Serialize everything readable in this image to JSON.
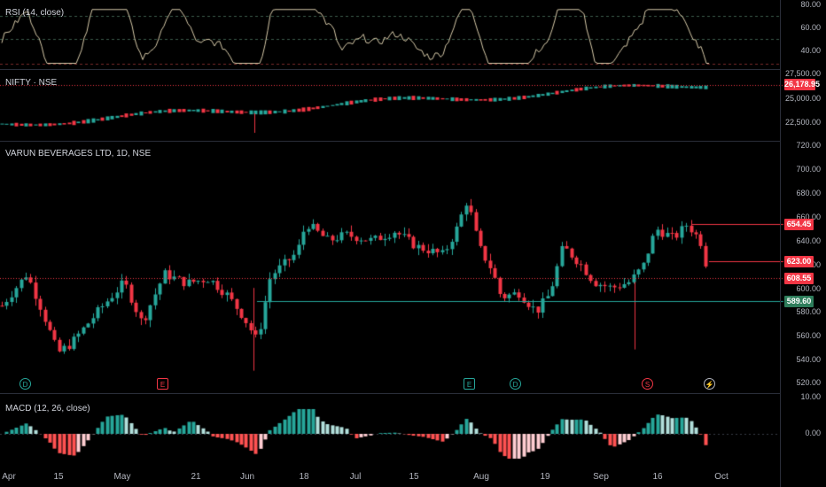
{
  "rsi": {
    "title": "RSI (14, close)",
    "axis": [
      "80.00",
      "60.00",
      "40.00"
    ]
  },
  "nifty": {
    "title": "NIFTY · NSE",
    "axis": [
      "27,500.00",
      "25,000.00",
      "22,500.00"
    ],
    "last_price": "26,178.95"
  },
  "main": {
    "title": "VARUN BEVERAGES LTD, 1D, NSE",
    "axis": [
      "720.00",
      "700.00",
      "680.00",
      "660.00",
      "640.00",
      "620.00",
      "600.00",
      "580.00",
      "560.00",
      "540.00",
      "520.00"
    ],
    "tags": [
      {
        "value": "654.45",
        "color": "#f23645"
      },
      {
        "value": "623.00",
        "color": "#f23645"
      },
      {
        "value": "608.55",
        "color": "#f23645"
      },
      {
        "value": "589.60",
        "color": "#2e7d5b"
      }
    ]
  },
  "macd": {
    "title": "MACD (12, 26, close)",
    "axis": [
      "10.00",
      "0.00"
    ]
  },
  "events": [
    {
      "label": "D",
      "color": "#26a69a"
    },
    {
      "label": "E",
      "color": "#f23645"
    },
    {
      "label": "E",
      "color": "#26a69a"
    },
    {
      "label": "D",
      "color": "#26a69a"
    },
    {
      "label": "S",
      "color": "#f23645"
    },
    {
      "label": "⚡",
      "color": "#b2b5be"
    }
  ],
  "dates": [
    "Apr",
    "15",
    "May",
    "21",
    "Jun",
    "18",
    "Jul",
    "15",
    "Aug",
    "19",
    "Sep",
    "16",
    "Oct"
  ],
  "colors": {
    "up": "#26a69a",
    "down": "#f23645",
    "rsi_line": "#d6c9a8",
    "macd_up_strong": "#26a69a",
    "macd_up_weak": "#b2dfdb",
    "macd_down_strong": "#ff5252",
    "macd_down_weak": "#ffcdd2"
  }
}
